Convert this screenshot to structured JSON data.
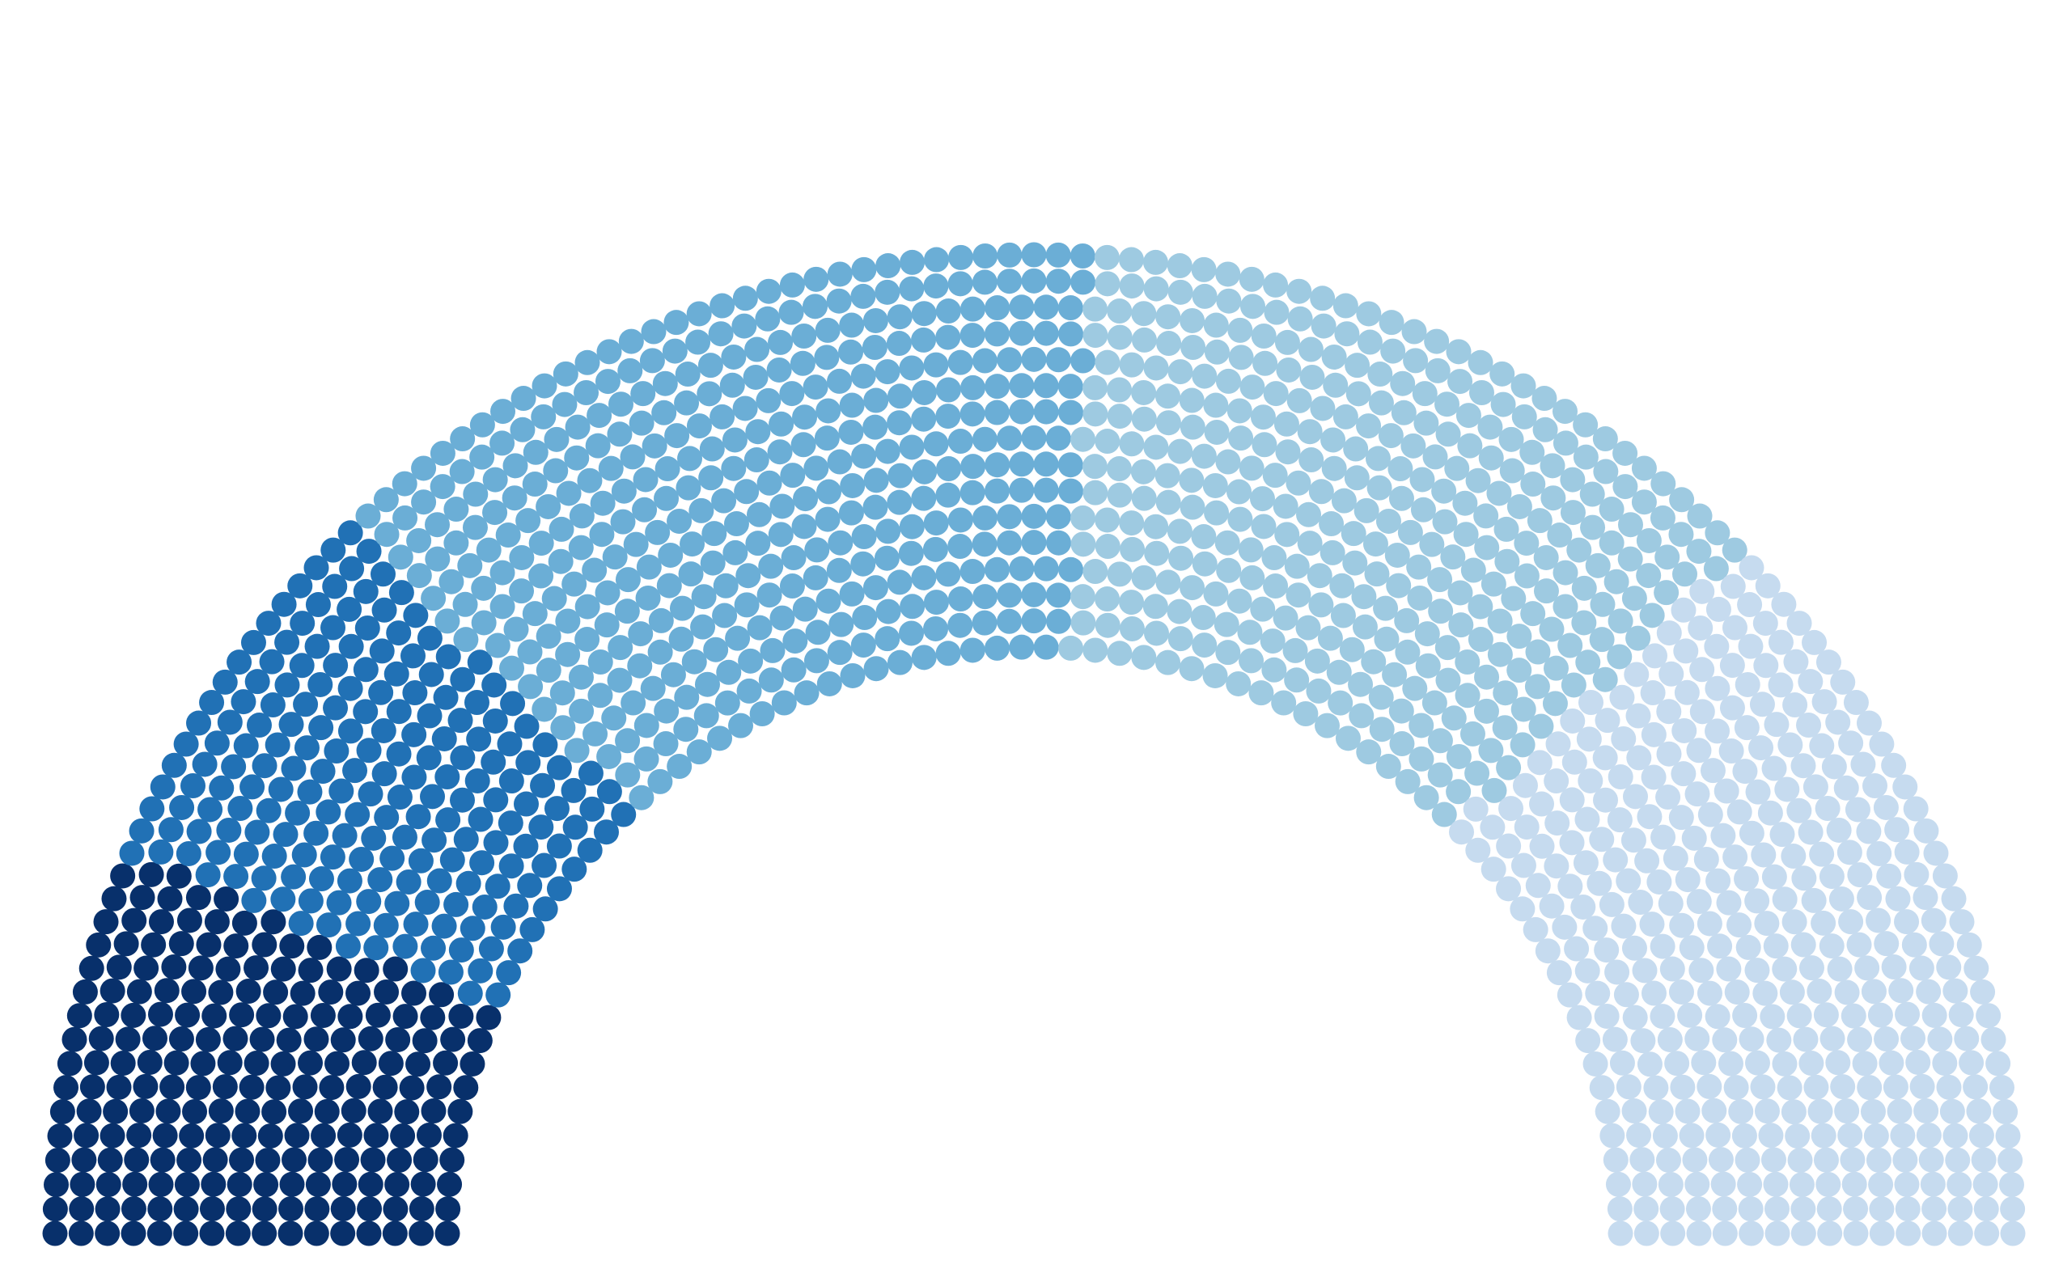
{
  "chart_data": {
    "type": "parliament",
    "title": "",
    "series": [
      {
        "value": 210,
        "color": "#08306b"
      },
      {
        "value": 210,
        "color": "#2171b5"
      },
      {
        "value": 420,
        "color": "#6baed6"
      },
      {
        "value": 380,
        "color": "#9ecae1"
      },
      {
        "value": 400,
        "color": "#c6dbef"
      }
    ]
  }
}
